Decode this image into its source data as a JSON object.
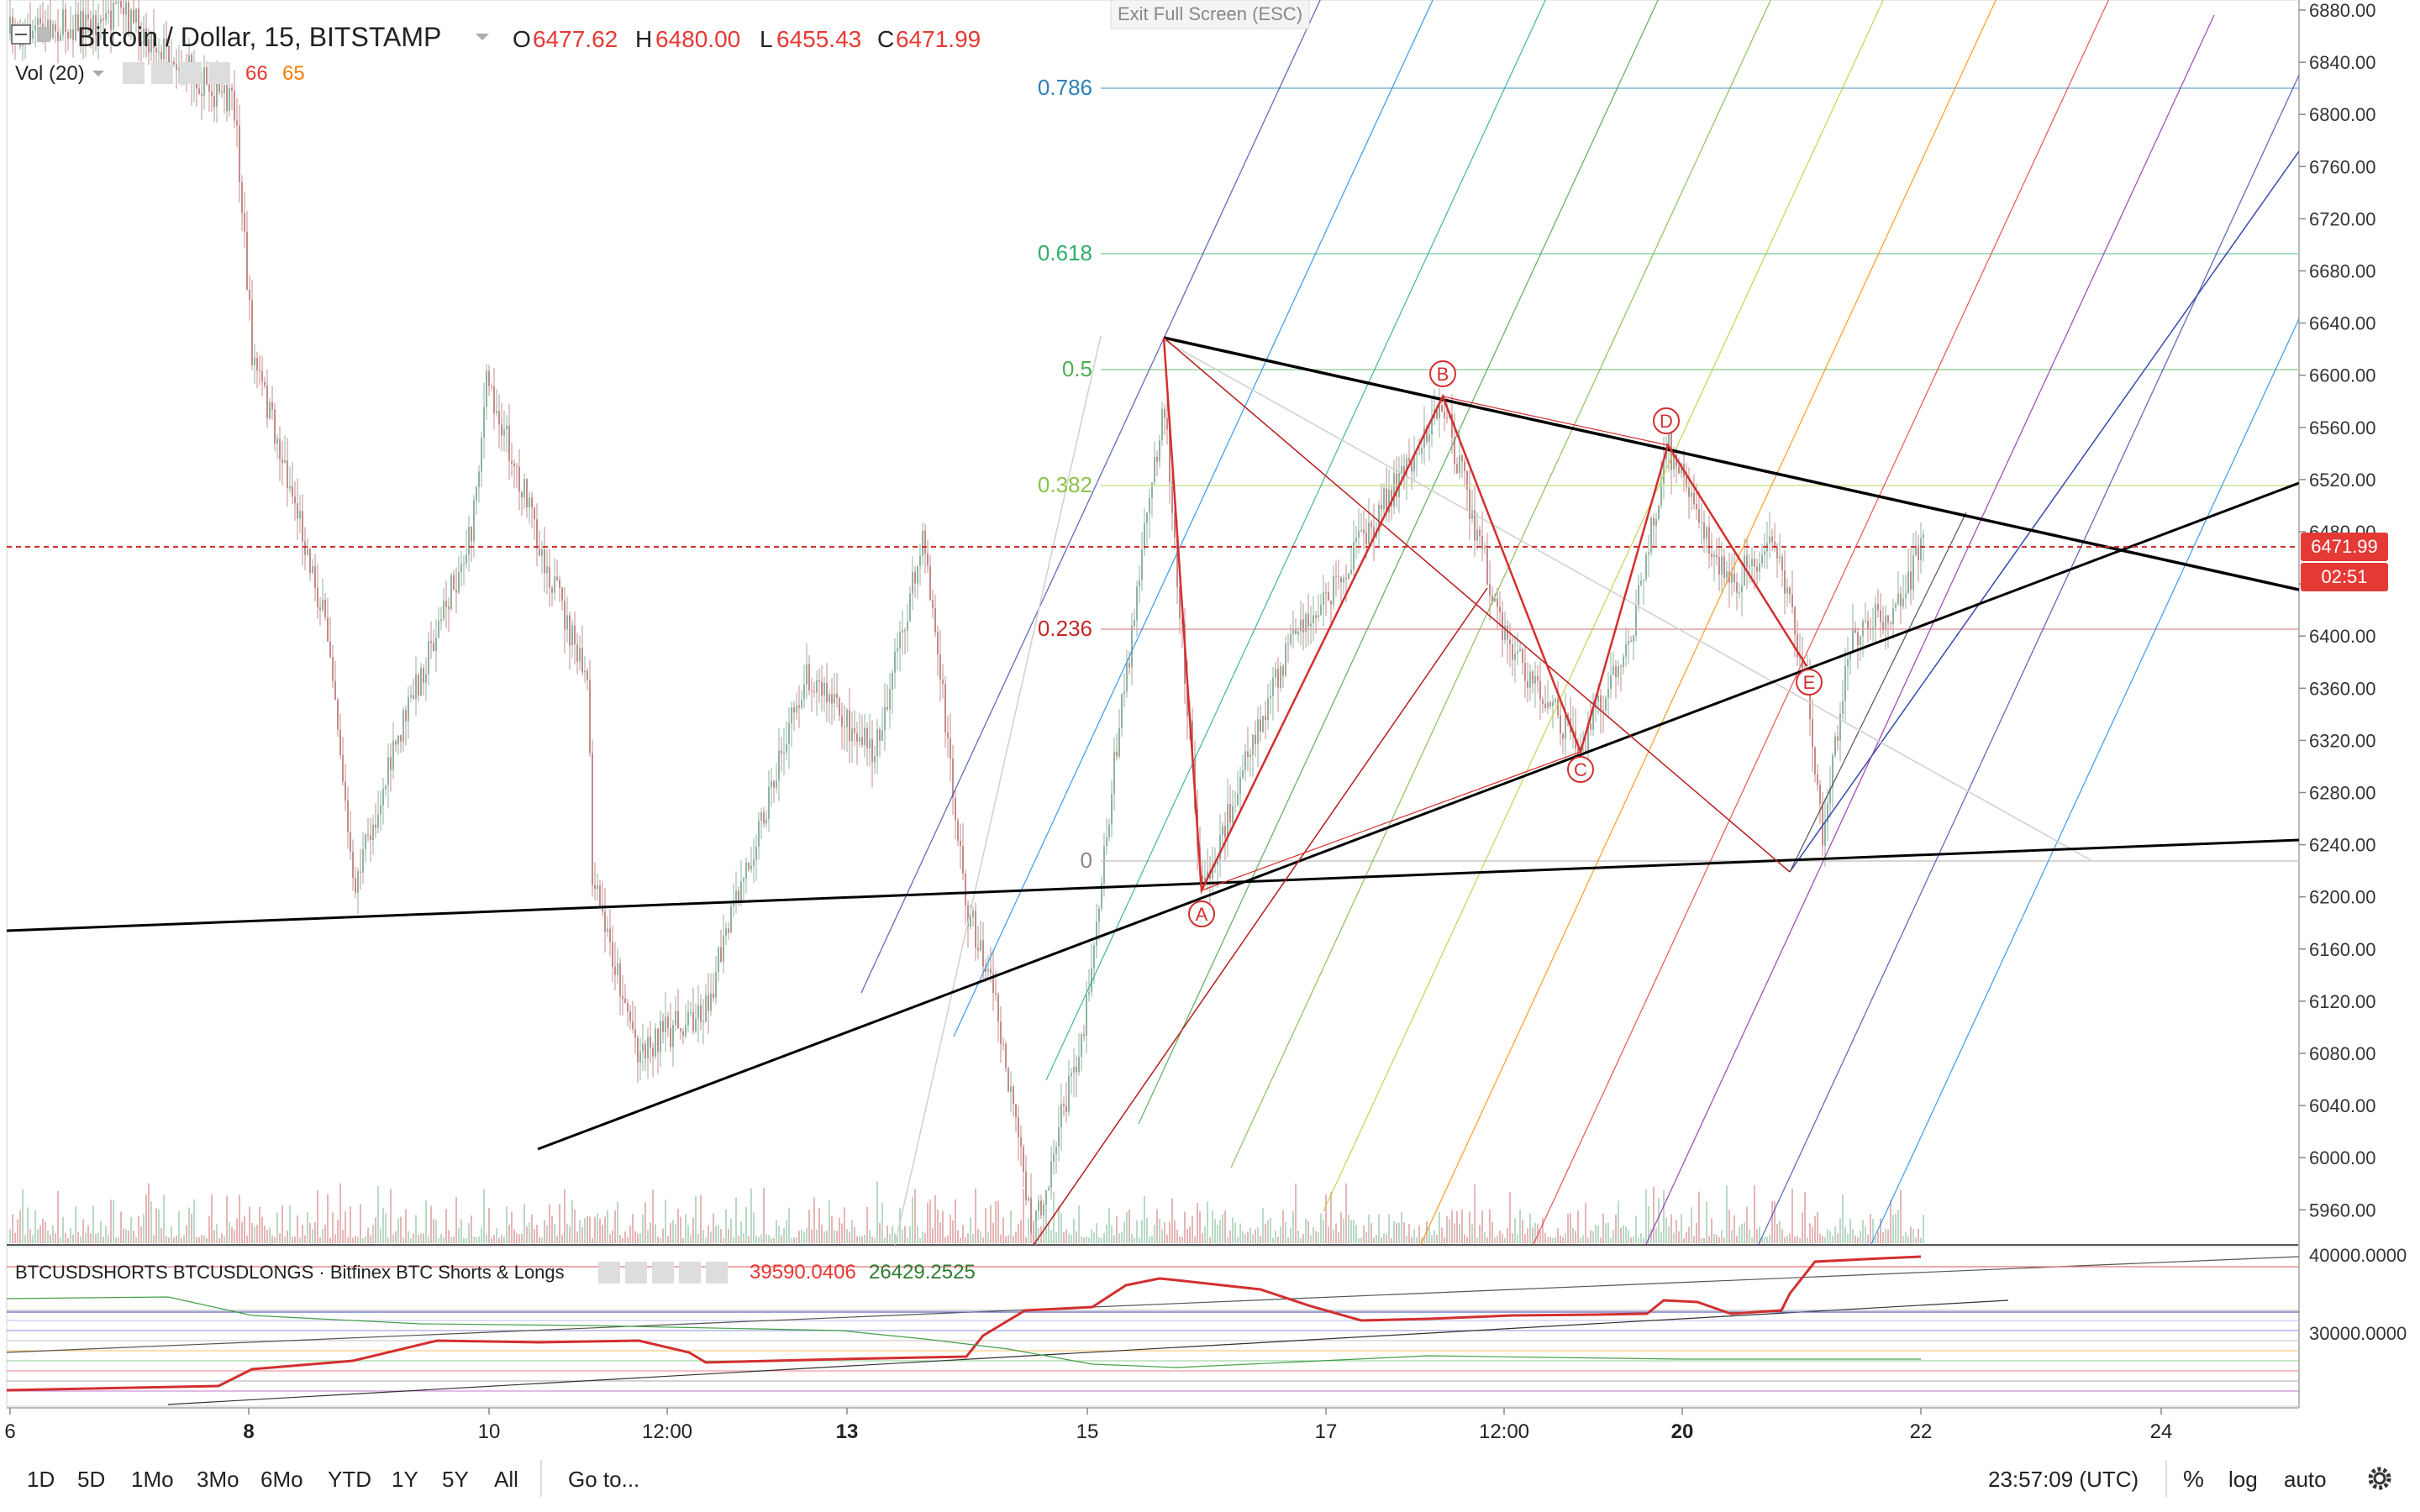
{
  "header": {
    "symbol": "Bitcoin / Dollar, 15, BITSTAMP",
    "ohlc": {
      "o_label": "O",
      "o": "6477.62",
      "h_label": "H",
      "h": "6480.00",
      "l_label": "L",
      "l": "6455.43",
      "c_label": "C",
      "c": "6471.99"
    },
    "volume": {
      "label": "Vol (20)",
      "v1": "66",
      "v2": "65"
    },
    "exit_fullscreen": "Exit Full Screen (ESC)"
  },
  "price_axis": {
    "ticks": [
      "6880.00",
      "6840.00",
      "6800.00",
      "6760.00",
      "6720.00",
      "6680.00",
      "6640.00",
      "6600.00",
      "6560.00",
      "6520.00",
      "6480.00",
      "6440.00",
      "6400.00",
      "6360.00",
      "6320.00",
      "6280.00",
      "6240.00",
      "6200.00",
      "6160.00",
      "6120.00",
      "6080.00",
      "6040.00",
      "6000.00",
      "5960.00"
    ],
    "current_price": "6471.99",
    "countdown": "02:51"
  },
  "fib_levels": [
    {
      "label": "0.786",
      "color": "#2f7fb8"
    },
    {
      "label": "0.618",
      "color": "#2fae6b"
    },
    {
      "label": "0.5",
      "color": "#4caf50"
    },
    {
      "label": "0.382",
      "color": "#8bc34a"
    },
    {
      "label": "0.236",
      "color": "#c62828"
    },
    {
      "label": "0",
      "color": "#888888"
    }
  ],
  "pattern_points": [
    {
      "label": "A"
    },
    {
      "label": "B"
    },
    {
      "label": "C"
    },
    {
      "label": "D"
    },
    {
      "label": "E"
    }
  ],
  "indicator": {
    "name": "BTCUSDSHORTS BTCUSDLONGS · Bitfinex BTC Shorts & Longs",
    "v1": "39590.0406",
    "v2": "26429.2525",
    "axis_ticks": [
      "40000.0000",
      "30000.0000"
    ]
  },
  "time_axis": {
    "ticks": [
      "6",
      "8",
      "10",
      "12:00",
      "13",
      "15",
      "17",
      "12:00",
      "20",
      "22",
      "24"
    ]
  },
  "bottom_toolbar": {
    "ranges": [
      "1D",
      "5D",
      "1Mo",
      "3Mo",
      "6Mo",
      "YTD",
      "1Y",
      "5Y",
      "All"
    ],
    "goto": "Go to...",
    "clock": "23:57:09 (UTC)",
    "percent": "%",
    "log": "log",
    "auto": "auto"
  },
  "colors": {
    "up": "#8fb3a0",
    "down": "#c48b8b",
    "pattern": "#d32f2f",
    "price_line": "#d32f2f",
    "trend": "#000000"
  }
}
